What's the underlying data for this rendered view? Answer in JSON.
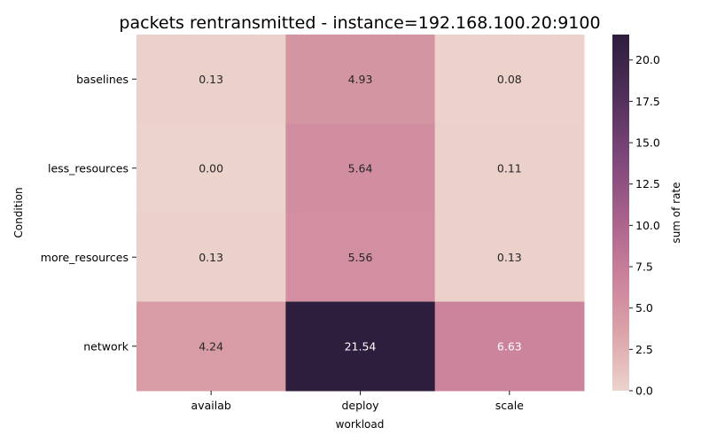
{
  "chart_data": {
    "type": "heatmap",
    "title": "packets rentransmitted - instance=192.168.100.20:9100",
    "xlabel": "workload",
    "ylabel": "Condition",
    "x_categories": [
      "availab",
      "deploy",
      "scale"
    ],
    "y_categories": [
      "baselines",
      "less_resources",
      "more_resources",
      "network"
    ],
    "values": [
      [
        0.13,
        4.93,
        0.08
      ],
      [
        0.0,
        5.64,
        0.11
      ],
      [
        0.13,
        5.56,
        0.13
      ],
      [
        4.24,
        21.54,
        6.63
      ]
    ],
    "value_labels": [
      [
        "0.13",
        "4.93",
        "0.08"
      ],
      [
        "0.00",
        "5.64",
        "0.11"
      ],
      [
        "0.13",
        "5.56",
        "0.13"
      ],
      [
        "4.24",
        "21.54",
        "6.63"
      ]
    ],
    "colorbar": {
      "label": "sum of rate",
      "range": [
        0,
        21.54
      ],
      "ticks": [
        0,
        2.5,
        5,
        7.5,
        10,
        12.5,
        15,
        17.5,
        20
      ],
      "tick_labels": [
        "0.0",
        "2.5",
        "5.0",
        "7.5",
        "10.0",
        "12.5",
        "15.0",
        "17.5",
        "20.0"
      ],
      "colormap": [
        "#ecd3cb",
        "#dba2a9",
        "#c97f9a",
        "#a45f8a",
        "#7a4578",
        "#4f2f58",
        "#2d1e3e"
      ]
    },
    "grid": false
  }
}
